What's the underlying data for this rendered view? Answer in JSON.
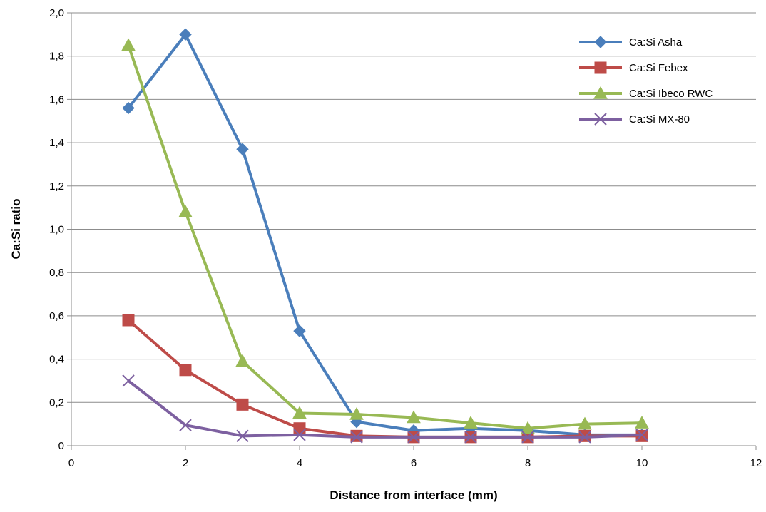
{
  "chart_data": {
    "type": "line",
    "title": "",
    "xlabel": "Distance from interface (mm)",
    "ylabel": "Ca:Si ratio",
    "xlim": [
      0,
      12
    ],
    "ylim": [
      0,
      2.0
    ],
    "x_ticks": [
      "0",
      "2",
      "4",
      "6",
      "8",
      "10",
      "12"
    ],
    "y_ticks": [
      "0",
      "0,2",
      "0,4",
      "0,6",
      "0,8",
      "1,0",
      "1,2",
      "1,4",
      "1,6",
      "1,8",
      "2,0"
    ],
    "grid": "horizontal",
    "legend_position": "top-right",
    "series": [
      {
        "name": "Ca:Si Asha",
        "color": "#4a7ebb",
        "marker": "diamond",
        "x": [
          1,
          2,
          3,
          4,
          5,
          6,
          7,
          8,
          9,
          10
        ],
        "y": [
          1.56,
          1.9,
          1.37,
          0.53,
          0.11,
          0.07,
          0.08,
          0.07,
          0.05,
          0.05
        ]
      },
      {
        "name": "Ca:Si Febex",
        "color": "#be4b48",
        "marker": "square",
        "x": [
          1,
          2,
          3,
          4,
          5,
          6,
          7,
          8,
          9,
          10
        ],
        "y": [
          0.58,
          0.35,
          0.19,
          0.08,
          0.045,
          0.04,
          0.04,
          0.04,
          0.045,
          0.045
        ]
      },
      {
        "name": "Ca:Si Ibeco RWC",
        "color": "#98b954",
        "marker": "triangle",
        "x": [
          1,
          2,
          3,
          4,
          5,
          6,
          7,
          8,
          9,
          10
        ],
        "y": [
          1.85,
          1.08,
          0.39,
          0.15,
          0.145,
          0.13,
          0.105,
          0.08,
          0.1,
          0.105
        ]
      },
      {
        "name": "Ca:Si MX-80",
        "color": "#7d60a0",
        "marker": "x",
        "x": [
          1,
          2,
          3,
          4,
          5,
          6,
          7,
          8,
          9,
          10
        ],
        "y": [
          0.3,
          0.095,
          0.045,
          0.05,
          0.04,
          0.04,
          0.04,
          0.04,
          0.04,
          0.05
        ]
      }
    ]
  }
}
